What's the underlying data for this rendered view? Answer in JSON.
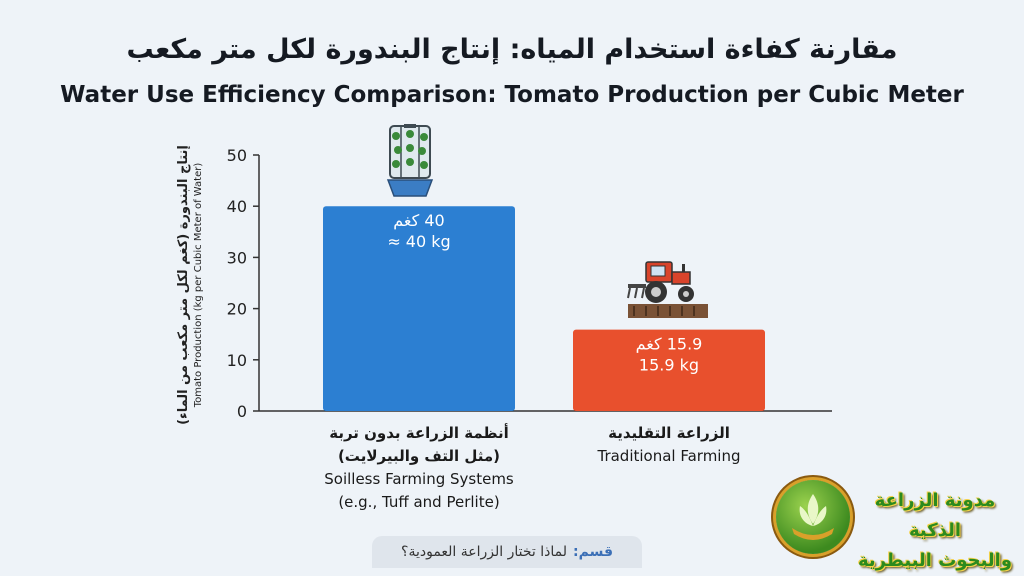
{
  "header": {
    "title_ar": "مقارنة كفاءة استخدام المياه: إنتاج البندورة لكل متر مكعب",
    "title_en": "Water Use Efficiency Comparison: Tomato Production per Cubic Meter"
  },
  "chart_data": {
    "type": "bar",
    "title": "Water Use Efficiency Comparison: Tomato Production per Cubic Meter",
    "ylabel_ar": "إنتاج البندورة (كغم لكل متر مكعب من الماء)",
    "ylabel": "Tomato Production (kg per Cubic Meter of Water)",
    "ylim": [
      0,
      50
    ],
    "yticks": [
      0,
      10,
      20,
      30,
      40,
      50
    ],
    "grid": false,
    "categories": [
      {
        "ar_line1": "أنظمة الزراعة بدون تربة",
        "ar_line2": "(مثل التف والبيرلايت)",
        "en_line1": "Soilless Farming Systems",
        "en_line2": "(e.g., Tuff and Perlite)"
      },
      {
        "ar_line1": "الزراعة التقليدية",
        "ar_line2": "",
        "en_line1": "Traditional Farming",
        "en_line2": ""
      }
    ],
    "values": [
      40,
      15.9
    ],
    "data_labels": [
      {
        "ar": "40 كغم",
        "en": "≈ 40 kg"
      },
      {
        "ar": "15.9 كغم",
        "en": "15.9 kg"
      }
    ],
    "colors": [
      "#2c7fd2",
      "#e8502d"
    ],
    "icons": [
      "vertical-hydroponic-tower-icon",
      "tractor-icon"
    ]
  },
  "footer": {
    "category_key": "قسم:",
    "category_value": "لماذا تختار الزراعة العمودية؟"
  },
  "brand": {
    "line1": "مدونة الزراعة الذكية",
    "line2": "والبحوث البيطرية"
  }
}
